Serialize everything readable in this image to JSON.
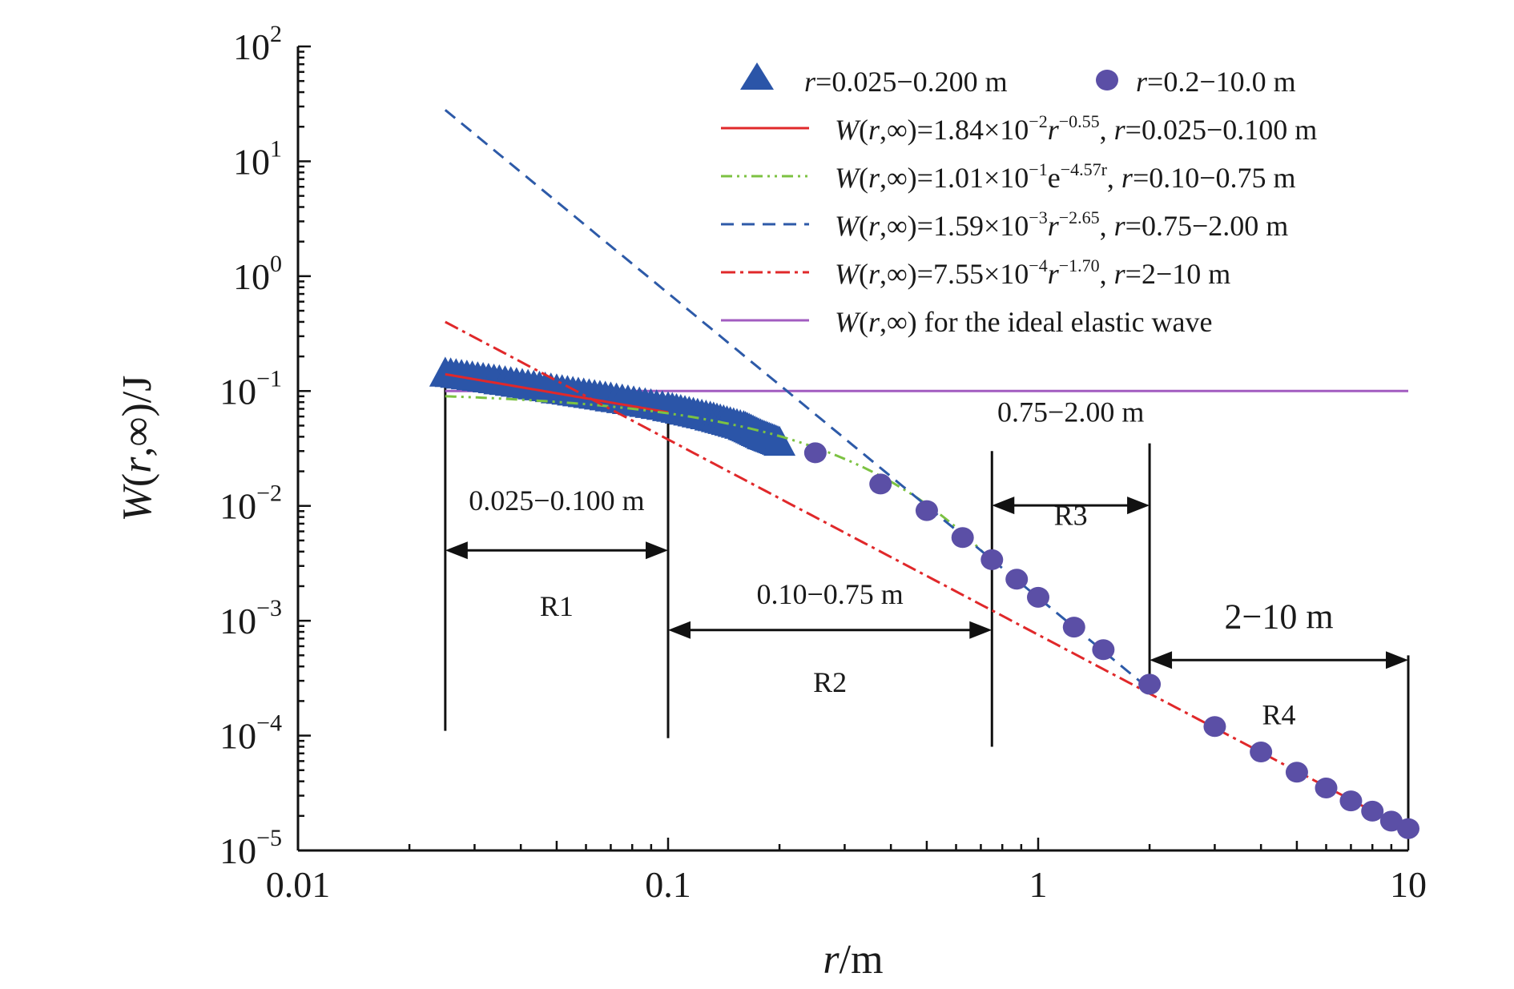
{
  "chart_data": {
    "type": "scatter",
    "x_scale": "log",
    "y_scale": "log",
    "xlim": [
      0.01,
      10
    ],
    "ylim": [
      1e-05,
      100
    ],
    "xlabel": {
      "italic": "r",
      "rest": "/m"
    },
    "ylabel": {
      "italic": "W",
      "rest": "(r,∞)/J"
    },
    "x_ticks": [
      {
        "value": 0.01,
        "label": "0.01"
      },
      {
        "value": 0.1,
        "label": "0.1"
      },
      {
        "value": 1,
        "label": "1"
      },
      {
        "value": 10,
        "label": "10"
      }
    ],
    "y_ticks": [
      {
        "value": 100,
        "base": "10",
        "exp": "2"
      },
      {
        "value": 10,
        "base": "10",
        "exp": "1"
      },
      {
        "value": 1,
        "base": "10",
        "exp": "0"
      },
      {
        "value": 0.1,
        "base": "10",
        "exp": "−1"
      },
      {
        "value": 0.01,
        "base": "10",
        "exp": "−2"
      },
      {
        "value": 0.001,
        "base": "10",
        "exp": "−3"
      },
      {
        "value": 0.0001,
        "base": "10",
        "exp": "−4"
      },
      {
        "value": 1e-05,
        "base": "10",
        "exp": "−5"
      }
    ],
    "series": [
      {
        "name": "r=0.025−0.200 m",
        "legend": {
          "italic": "r",
          "rest": "=0.025−0.200 m"
        },
        "kind": "triangles",
        "color": "#2b55a8",
        "x": [
          0.025,
          0.035,
          0.05,
          0.07,
          0.1,
          0.13,
          0.16,
          0.18,
          0.2
        ],
        "y": [
          0.14,
          0.12,
          0.1,
          0.085,
          0.07,
          0.058,
          0.048,
          0.04,
          0.035
        ]
      },
      {
        "name": "r=0.2−10.0 m",
        "legend": {
          "italic": "r",
          "rest": "=0.2−10.0 m"
        },
        "kind": "circles",
        "color": "#5b4fa6",
        "x": [
          0.25,
          0.375,
          0.5,
          0.625,
          0.75,
          0.875,
          1.0,
          1.25,
          1.5,
          2.0,
          3.0,
          4.0,
          5.0,
          6.0,
          7.0,
          8.0,
          9.0,
          10.0
        ],
        "y": [
          0.029,
          0.0155,
          0.0091,
          0.0053,
          0.0034,
          0.0023,
          0.0016,
          0.00088,
          0.00056,
          0.00028,
          0.00012,
          7.2e-05,
          4.8e-05,
          3.5e-05,
          2.7e-05,
          2.2e-05,
          1.8e-05,
          1.55e-05
        ]
      },
      {
        "name": "W(r,∞)=1.84×10⁻²r⁻⁰·⁵⁵, r=0.025−0.100 m",
        "legend": {
          "pre": "=1.84×10",
          "exp1": "−2",
          "var2": "r",
          "exp2": "−0.55",
          "post": ", ",
          "var3": "r",
          "tail": "=0.025−0.100 m"
        },
        "kind": "fit",
        "color": "#e0282a",
        "dash": "",
        "formula": "power",
        "a": 0.0184,
        "b": -0.55,
        "draw_range": [
          0.025,
          0.1
        ]
      },
      {
        "name": "W(r,∞)=1.01×10⁻¹e⁻⁴·⁵⁷r, r=0.10−0.75 m",
        "legend": {
          "pre": "=1.01×10",
          "exp1": "−1",
          "var2": "e",
          "exp2": "−4.57r",
          "post": ", ",
          "var3": "r",
          "tail": "=0.10−0.75 m"
        },
        "kind": "fit",
        "color": "#7cc242",
        "dash": "14 6 3 6 3 6",
        "formula": "exp",
        "a": 0.101,
        "b": -4.57,
        "draw_range": [
          0.025,
          0.75
        ]
      },
      {
        "name": "W(r,∞)=1.59×10⁻³r⁻²·⁶⁵, r=0.75−2.00 m",
        "legend": {
          "pre": "=1.59×10",
          "exp1": "−3",
          "var2": "r",
          "exp2": "−2.65",
          "post": ", ",
          "var3": "r",
          "tail": "=0.75−2.00 m"
        },
        "kind": "fit",
        "color": "#2d5aa8",
        "dash": "16 10",
        "formula": "power",
        "a": 0.00159,
        "b": -2.65,
        "draw_range": [
          0.025,
          2.0
        ]
      },
      {
        "name": "W(r,∞)=7.55×10⁻⁴r⁻¹·⁷⁰, r=2−10 m",
        "legend": {
          "pre": "=7.55×10",
          "exp1": "−4",
          "var2": "r",
          "exp2": "−1.70",
          "post": ", ",
          "var3": "r",
          "tail": "=2−10 m"
        },
        "kind": "fit",
        "color": "#e0282a",
        "dash": "18 6 4 6",
        "formula": "power",
        "a": 0.000755,
        "b": -1.7,
        "draw_range": [
          0.025,
          10
        ]
      },
      {
        "name": "W(r,∞) for the ideal elastic wave",
        "legend": {
          "plain": " for the ideal elastic wave"
        },
        "kind": "hline",
        "color": "#a25cc0",
        "value": 0.1,
        "draw_range": [
          0.025,
          10
        ]
      }
    ],
    "legend_prefix": {
      "italic": "W",
      "rest": "(r,∞)"
    },
    "legend_position": "top-right",
    "regions": [
      {
        "id": "R1",
        "label": "R1",
        "range_label": "0.025−0.100 m",
        "x0": 0.025,
        "x1": 0.1
      },
      {
        "id": "R2",
        "label": "R2",
        "range_label": "0.10−0.75 m",
        "x0": 0.1,
        "x1": 0.75
      },
      {
        "id": "R3",
        "label": "R3",
        "range_label": "0.75−2.00 m",
        "x0": 0.75,
        "x1": 2.0
      },
      {
        "id": "R4",
        "label": "R4",
        "range_label": "2−10 m",
        "x0": 2.0,
        "x1": 10
      }
    ],
    "grid": false
  }
}
